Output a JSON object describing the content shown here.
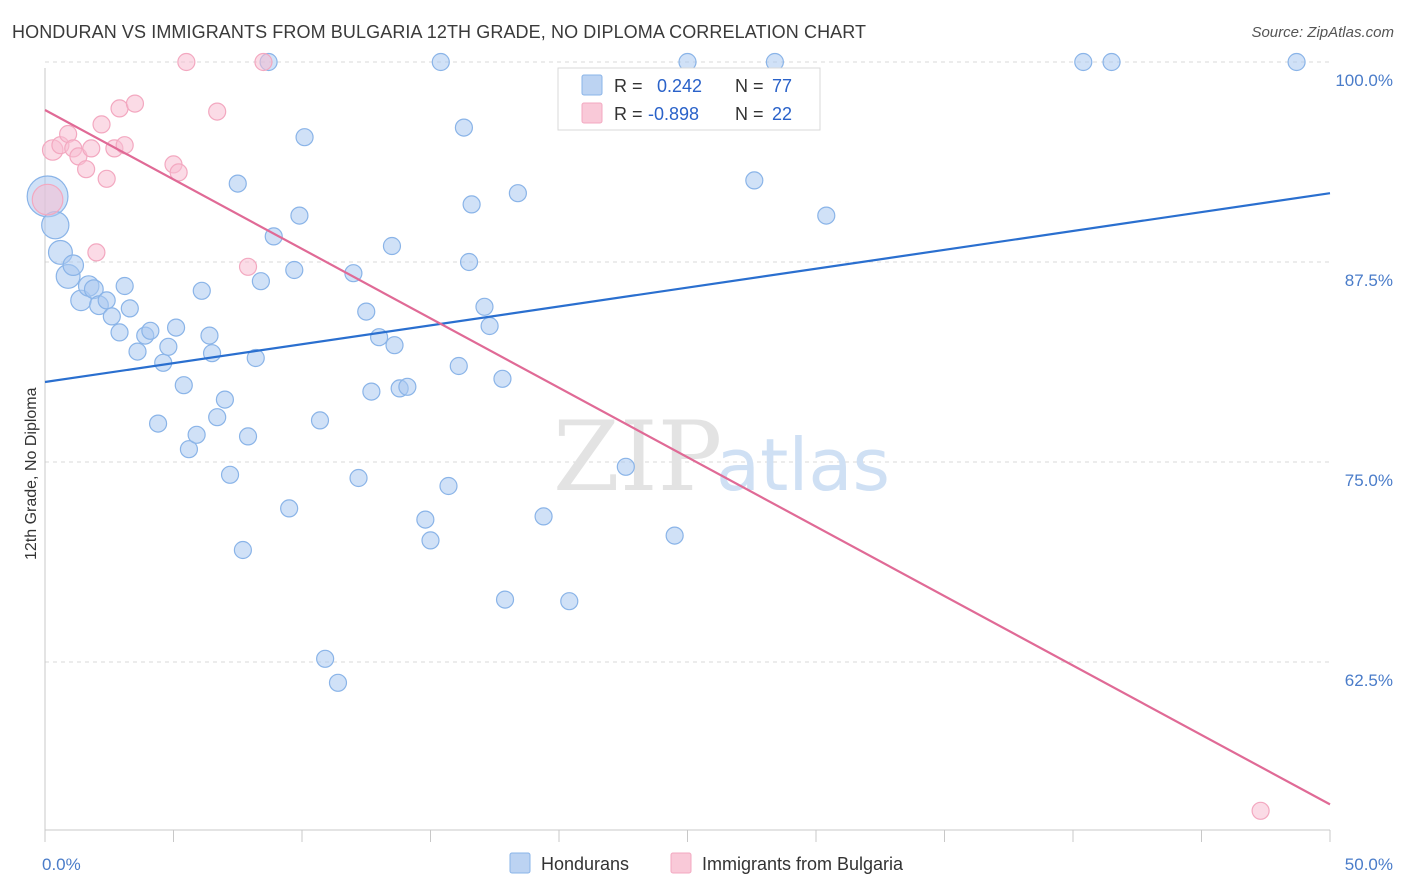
{
  "title": "HONDURAN VS IMMIGRANTS FROM BULGARIA 12TH GRADE, NO DIPLOMA CORRELATION CHART",
  "source": "Source: ZipAtlas.com",
  "watermark": {
    "zip": "ZIP",
    "atlas": "atlas"
  },
  "legend": {
    "r_label": "R =",
    "n_label": "N =",
    "rows": [
      {
        "r": "0.242",
        "n": "77"
      },
      {
        "r": "-0.898",
        "n": "22"
      }
    ]
  },
  "chart_data": {
    "type": "scatter",
    "xlabel": "",
    "ylabel": "12th Grade, No Diploma",
    "xlim": [
      0,
      50
    ],
    "ylim": [
      52,
      100
    ],
    "x_tick_labels": [
      {
        "value": 0,
        "label": "0.0%"
      },
      {
        "value": 50,
        "label": "50.0%"
      }
    ],
    "y_tick_labels": [
      {
        "value": 100,
        "label": "100.0%"
      },
      {
        "value": 87.5,
        "label": "87.5%"
      },
      {
        "value": 75,
        "label": "75.0%"
      },
      {
        "value": 62.5,
        "label": "62.5%"
      }
    ],
    "colors": {
      "hondurans": "#8ab4e8",
      "bulgaria": "#f3a8c0",
      "blue_line": "#2a6fcf",
      "pink_line": "#e06a96"
    },
    "series": [
      {
        "name": "Hondurans",
        "r": 0.242,
        "n": 77,
        "trend": [
          [
            0,
            80.0
          ],
          [
            50,
            91.8
          ]
        ],
        "points": [
          [
            0.1,
            91.6,
            24
          ],
          [
            0.4,
            89.8,
            16
          ],
          [
            0.6,
            88.1,
            14
          ],
          [
            0.9,
            86.6,
            14
          ],
          [
            1.1,
            87.3,
            12
          ],
          [
            1.4,
            85.1,
            12
          ],
          [
            1.7,
            86.0,
            12
          ],
          [
            1.9,
            85.8,
            11
          ],
          [
            2.1,
            84.8,
            11
          ],
          [
            2.4,
            85.1,
            10
          ],
          [
            2.6,
            84.1,
            10
          ],
          [
            2.9,
            83.1,
            10
          ],
          [
            3.1,
            86.0,
            10
          ],
          [
            3.3,
            84.6,
            10
          ],
          [
            3.6,
            81.9,
            10
          ],
          [
            3.9,
            82.9,
            10
          ],
          [
            4.1,
            83.2,
            10
          ],
          [
            4.4,
            77.4,
            10
          ],
          [
            4.6,
            81.2,
            10
          ],
          [
            4.8,
            82.2,
            10
          ],
          [
            5.1,
            83.4,
            10
          ],
          [
            5.4,
            79.8,
            10
          ],
          [
            5.6,
            75.8,
            10
          ],
          [
            5.9,
            76.7,
            10
          ],
          [
            6.1,
            85.7,
            10
          ],
          [
            6.4,
            82.9,
            10
          ],
          [
            6.5,
            81.8,
            10
          ],
          [
            6.7,
            77.8,
            10
          ],
          [
            7.0,
            78.9,
            10
          ],
          [
            7.2,
            74.2,
            10
          ],
          [
            7.5,
            92.4,
            10
          ],
          [
            7.7,
            69.5,
            10
          ],
          [
            7.9,
            76.6,
            10
          ],
          [
            8.2,
            81.5,
            10
          ],
          [
            8.4,
            86.3,
            10
          ],
          [
            8.7,
            100.0,
            10
          ],
          [
            8.9,
            89.1,
            10
          ],
          [
            9.5,
            72.1,
            10
          ],
          [
            9.7,
            87.0,
            10
          ],
          [
            9.9,
            90.4,
            10
          ],
          [
            10.1,
            95.3,
            10
          ],
          [
            10.7,
            77.6,
            10
          ],
          [
            10.9,
            62.7,
            10
          ],
          [
            11.4,
            61.2,
            10
          ],
          [
            12.0,
            86.8,
            10
          ],
          [
            12.2,
            74.0,
            10
          ],
          [
            12.5,
            84.4,
            10
          ],
          [
            12.7,
            79.4,
            10
          ],
          [
            13.0,
            82.8,
            10
          ],
          [
            13.5,
            88.5,
            10
          ],
          [
            13.6,
            82.3,
            10
          ],
          [
            13.8,
            79.6,
            10
          ],
          [
            14.1,
            79.7,
            10
          ],
          [
            14.8,
            71.4,
            10
          ],
          [
            15.0,
            70.1,
            10
          ],
          [
            15.4,
            100.0,
            10
          ],
          [
            15.7,
            73.5,
            10
          ],
          [
            16.1,
            81.0,
            10
          ],
          [
            16.3,
            95.9,
            10
          ],
          [
            16.5,
            87.5,
            10
          ],
          [
            16.6,
            91.1,
            10
          ],
          [
            17.1,
            84.7,
            10
          ],
          [
            17.3,
            83.5,
            10
          ],
          [
            17.8,
            80.2,
            10
          ],
          [
            18.4,
            91.8,
            10
          ],
          [
            17.9,
            66.4,
            10
          ],
          [
            19.4,
            71.6,
            10
          ],
          [
            20.4,
            66.3,
            10
          ],
          [
            22.6,
            74.7,
            10
          ],
          [
            24.5,
            70.4,
            10
          ],
          [
            25.0,
            100.0,
            10
          ],
          [
            27.6,
            92.6,
            10
          ],
          [
            28.4,
            100.0,
            10
          ],
          [
            30.4,
            90.4,
            10
          ],
          [
            40.4,
            100.0,
            10
          ],
          [
            41.5,
            100.0,
            10
          ],
          [
            48.7,
            100.0,
            10
          ]
        ]
      },
      {
        "name": "Immigrants from Bulgaria",
        "r": -0.898,
        "n": 22,
        "trend": [
          [
            0,
            97.0
          ],
          [
            50,
            53.6
          ]
        ],
        "points": [
          [
            0.1,
            91.4,
            18
          ],
          [
            0.3,
            94.5,
            12
          ],
          [
            0.6,
            94.8,
            10
          ],
          [
            0.9,
            95.5,
            10
          ],
          [
            1.1,
            94.6,
            10
          ],
          [
            1.3,
            94.1,
            10
          ],
          [
            1.6,
            93.3,
            10
          ],
          [
            1.8,
            94.6,
            10
          ],
          [
            2.0,
            88.1,
            10
          ],
          [
            2.2,
            96.1,
            10
          ],
          [
            2.4,
            92.7,
            10
          ],
          [
            2.7,
            94.6,
            10
          ],
          [
            2.9,
            97.1,
            10
          ],
          [
            3.1,
            94.8,
            10
          ],
          [
            3.5,
            97.4,
            10
          ],
          [
            5.0,
            93.6,
            10
          ],
          [
            5.2,
            93.1,
            10
          ],
          [
            5.5,
            100.0,
            10
          ],
          [
            6.7,
            96.9,
            10
          ],
          [
            7.9,
            87.2,
            10
          ],
          [
            8.5,
            100.0,
            10
          ],
          [
            47.3,
            53.2,
            10
          ]
        ]
      }
    ]
  },
  "bottom_legend": [
    "Hondurans",
    "Immigrants from Bulgaria"
  ]
}
